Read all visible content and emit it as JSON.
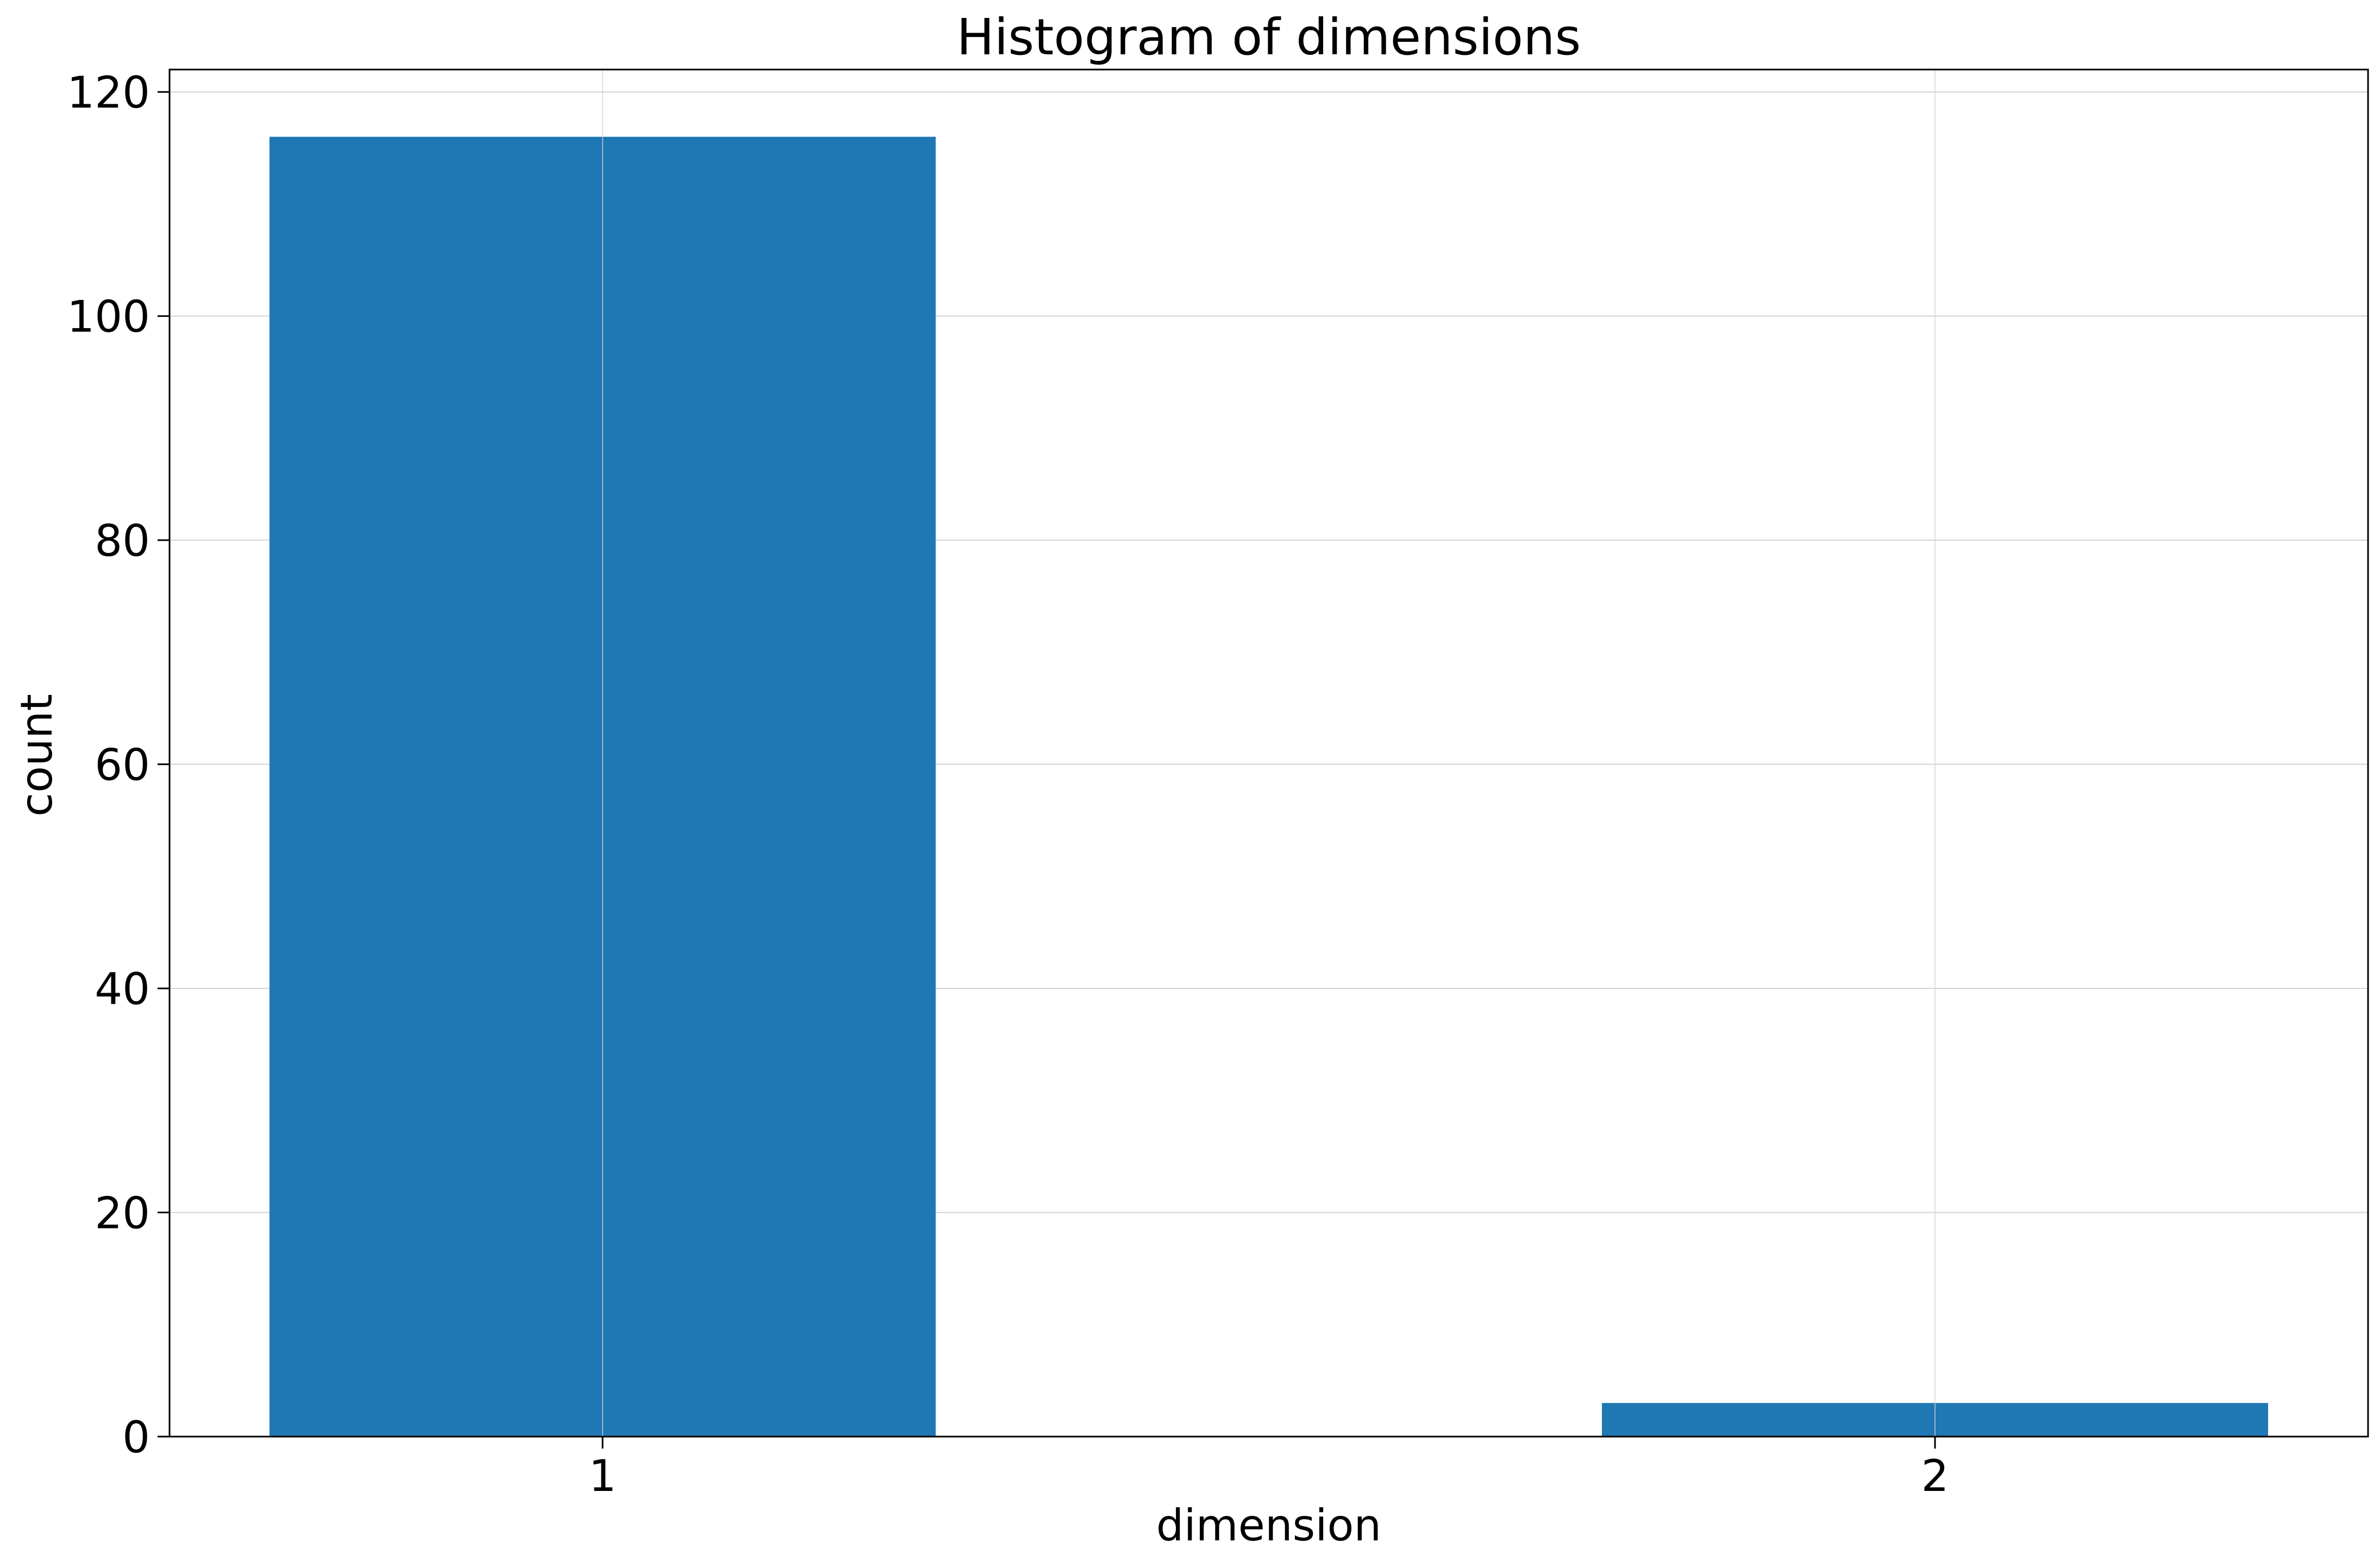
{
  "chart_data": {
    "type": "bar",
    "title": "Histogram of dimensions",
    "xlabel": "dimension",
    "ylabel": "count",
    "categories": [
      "1",
      "2"
    ],
    "x": [
      1,
      2
    ],
    "values": [
      116,
      3
    ],
    "bar_width": 0.5,
    "xlim": [
      0.675,
      2.325
    ],
    "ylim": [
      0,
      122
    ],
    "yticks": [
      0,
      20,
      40,
      60,
      80,
      100,
      120
    ],
    "ytick_labels": [
      "0",
      "20",
      "40",
      "60",
      "80",
      "100",
      "120"
    ],
    "xtick_labels": [
      "1",
      "2"
    ],
    "grid": true,
    "legend": "none",
    "colors": {
      "bar": "#1f77b4",
      "grid": "#d3d3d3",
      "axes": "#000000",
      "background": "#ffffff"
    }
  }
}
